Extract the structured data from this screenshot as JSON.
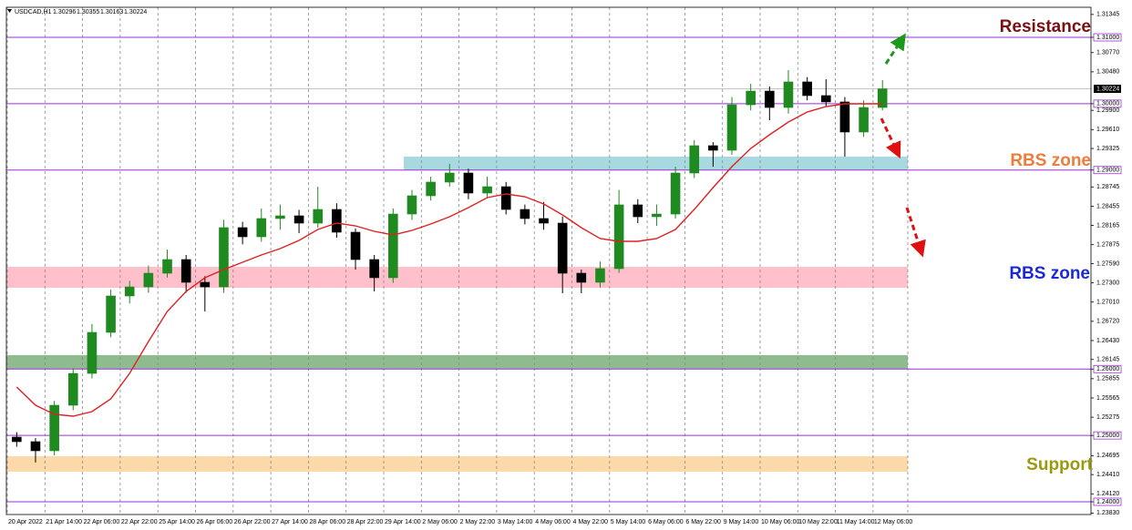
{
  "chart_data": {
    "type": "candlestick",
    "header": {
      "symbol": "USDCAD,H1",
      "open": 1.30296,
      "high": 1.30355,
      "low": 1.30163,
      "close": 1.30224
    },
    "categories": [
      "20 Apr 2022",
      null,
      "21 Apr 14:00",
      null,
      "22 Apr 06:00",
      null,
      "22 Apr 22:00",
      null,
      "25 Apr 14:00",
      null,
      "26 Apr 06:00",
      null,
      "26 Apr 22:00",
      null,
      "27 Apr 14:00",
      null,
      "28 Apr 06:00",
      null,
      "28 Apr 22:00",
      null,
      "29 Apr 14:00",
      null,
      "2 May 06:00",
      null,
      "2 May 22:00",
      null,
      "3 May 14:00",
      null,
      "4 May 06:00",
      null,
      "4 May 22:00",
      null,
      "5 May 14:00",
      null,
      "6 May 06:00",
      null,
      "6 May 22:00",
      null,
      "9 May 14:00",
      null,
      "10 May 06:00",
      null,
      "10 May 22:00",
      null,
      "11 May 14:00",
      null,
      "12 May 06:00"
    ],
    "open": [
      1.24975,
      1.24906,
      1.24769,
      1.25455,
      1.25935,
      1.26553,
      1.27102,
      1.27239,
      1.27445,
      1.27651,
      1.27308,
      1.27239,
      1.28132,
      1.27994,
      1.28269,
      1.2831,
      1.282,
      1.28406,
      1.28063,
      1.27651,
      1.27377,
      1.28337,
      1.28612,
      1.28818,
      1.28955,
      1.28653,
      1.28749,
      1.28406,
      1.28269,
      1.282,
      1.27445,
      1.27308,
      1.27514,
      1.28475,
      1.28296,
      1.28337,
      1.28955,
      1.29367,
      1.29298,
      1.29984,
      1.3019,
      1.29943,
      1.30328,
      1.30122,
      1.30026,
      1.29573,
      1.29943
    ],
    "high": [
      1.2505,
      1.2496,
      1.2552,
      1.2601,
      1.2668,
      1.272,
      1.2733,
      1.2756,
      1.278,
      1.2772,
      1.274,
      1.2825,
      1.2822,
      1.2842,
      1.2848,
      1.284,
      1.28749,
      1.285,
      1.2812,
      1.2772,
      1.2842,
      1.287,
      1.289,
      1.29092,
      1.2902,
      1.289,
      1.2882,
      1.2848,
      1.2852,
      1.283,
      1.275,
      1.2762,
      1.287,
      1.2856,
      1.2848,
      1.2905,
      1.2945,
      1.2942,
      1.301,
      1.303,
      1.3026,
      1.30506,
      1.304,
      1.30369,
      1.301,
      1.3005,
      1.30355
    ],
    "low": [
      1.2483,
      1.24592,
      1.247,
      1.2538,
      1.2586,
      1.2648,
      1.2699,
      1.2715,
      1.2738,
      1.2715,
      1.26869,
      1.2715,
      1.2788,
      1.2792,
      1.281,
      1.2805,
      1.2813,
      1.2798,
      1.275,
      1.27171,
      1.273,
      1.2825,
      1.2854,
      1.2875,
      1.2856,
      1.2858,
      1.2833,
      1.2818,
      1.281,
      1.27143,
      1.27143,
      1.2723,
      1.2745,
      1.282,
      1.2816,
      1.2827,
      1.2888,
      1.2905,
      1.2923,
      1.299,
      1.2975,
      1.2985,
      1.3005,
      1.2995,
      1.29202,
      1.295,
      1.299
    ],
    "close": [
      1.24906,
      1.24769,
      1.25455,
      1.25935,
      1.26553,
      1.27102,
      1.27239,
      1.27445,
      1.27651,
      1.27308,
      1.27239,
      1.28132,
      1.27994,
      1.28269,
      1.2831,
      1.282,
      1.28406,
      1.28063,
      1.27651,
      1.27377,
      1.28337,
      1.28612,
      1.28818,
      1.28955,
      1.28653,
      1.28749,
      1.28406,
      1.28269,
      1.282,
      1.27445,
      1.27308,
      1.27514,
      1.28475,
      1.28296,
      1.28337,
      1.28955,
      1.29367,
      1.29298,
      1.29984,
      1.3019,
      1.29943,
      1.30328,
      1.30122,
      1.30026,
      1.29573,
      1.29943,
      1.30224
    ],
    "up_color": "#1f8a1f",
    "down_color": "#000000",
    "ma": {
      "values": [
        1.2573,
        1.25455,
        1.25318,
        1.2529,
        1.25359,
        1.25551,
        1.25936,
        1.26416,
        1.26869,
        1.27171,
        1.27377,
        1.275,
        1.2761,
        1.2772,
        1.27816,
        1.27939,
        1.28104,
        1.282,
        1.28159,
        1.28077,
        1.28022,
        1.2809,
        1.28186,
        1.28296,
        1.28433,
        1.28584,
        1.28639,
        1.28598,
        1.28488,
        1.28324,
        1.28132,
        1.27967,
        1.27926,
        1.27926,
        1.27967,
        1.28104,
        1.28406,
        1.28735,
        1.29051,
        1.29326,
        1.29531,
        1.29724,
        1.29875,
        1.29957,
        1.29998,
        1.29998,
        1.29998
      ],
      "color": "#e02020"
    },
    "levels": {
      "values": [
        1.31,
        1.3,
        1.29,
        1.26,
        1.25,
        1.24
      ],
      "color": "#9b30d9"
    },
    "zones": [
      {
        "top": 1.29202,
        "bottom": 1.29,
        "color": "#a8d8e0"
      },
      {
        "top": 1.27541,
        "bottom": 1.27226,
        "color": "#ffc0cb"
      },
      {
        "top": 1.2621,
        "bottom": 1.26004,
        "color": "#8fbc8f"
      },
      {
        "top": 1.24687,
        "bottom": 1.24453,
        "color": "#fcd9a8"
      }
    ],
    "annotations": [
      {
        "text": "Resistance",
        "color": "#7a1010"
      },
      {
        "text": "RBS zone",
        "color": "#f07c3c"
      },
      {
        "text": "RBS zone",
        "color": "#1a2bd6"
      },
      {
        "text": "Support",
        "color": "#9a9a10"
      }
    ],
    "ylim": [
      1.23808,
      1.31453
    ],
    "yticks": [
      1.31345,
      {
        "value": 1.31,
        "label": "1.31000"
      },
      {
        "value": 1.3077,
        "label": "1.30770"
      },
      {
        "value": 1.3048,
        "label": "1.30480"
      },
      {
        "value": 1.3,
        "label": "1.30000"
      },
      {
        "value": 1.299,
        "label": "1.29900"
      },
      {
        "value": 1.2961,
        "label": "1.29610"
      },
      1.29325,
      {
        "value": 1.29,
        "label": "1.29000"
      },
      1.28745,
      1.28455,
      1.28165,
      1.27875,
      {
        "value": 1.2759,
        "label": "1.27590"
      },
      {
        "value": 1.273,
        "label": "1.27300"
      },
      {
        "value": 1.2701,
        "label": "1.27010"
      },
      {
        "value": 1.2672,
        "label": "1.26720"
      },
      {
        "value": 1.2643,
        "label": "1.26430"
      },
      1.26145,
      {
        "value": 1.26,
        "label": "1.26000"
      },
      1.25855,
      1.25565,
      1.25275,
      {
        "value": 1.25,
        "label": "1.25000"
      },
      1.24695,
      {
        "value": 1.2441,
        "label": "1.24410"
      },
      {
        "value": 1.2412,
        "label": "1.24120"
      },
      {
        "value": 1.24,
        "label": "1.24000"
      },
      {
        "value": 1.2383,
        "label": "1.23830"
      }
    ],
    "grid": true
  }
}
